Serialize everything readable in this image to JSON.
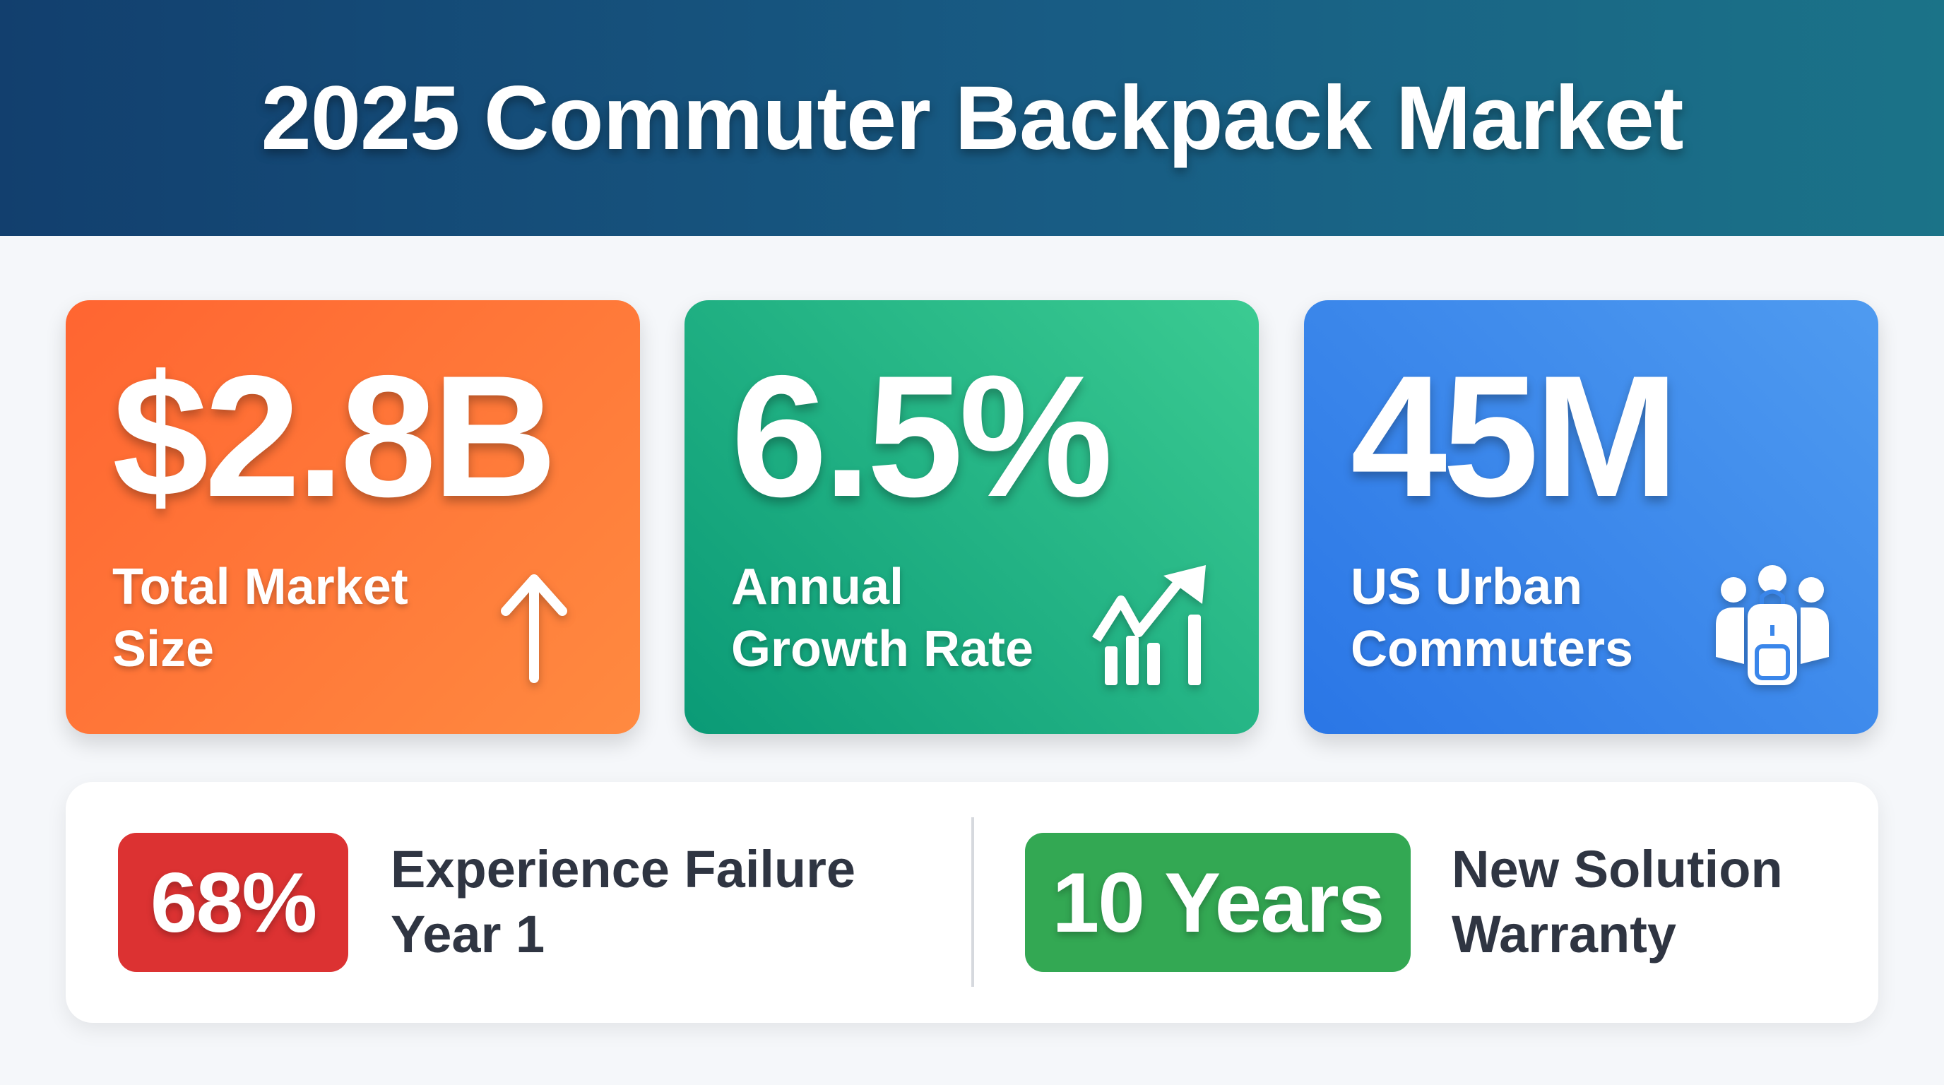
{
  "header": {
    "title": "2025 Commuter Backpack Market"
  },
  "cards": [
    {
      "value": "$2.8B",
      "label_line1": "Total Market",
      "label_line2": "Size",
      "icon": "arrow-up-icon",
      "color": "#ff7535"
    },
    {
      "value": "6.5%",
      "label_line1": "Annual",
      "label_line2": "Growth Rate",
      "icon": "growth-chart-icon",
      "color": "#1fb07f"
    },
    {
      "value": "45M",
      "label_line1": "US Urban",
      "label_line2": "Commuters",
      "icon": "people-backpack-icon",
      "color": "#3a86ea"
    }
  ],
  "stats": [
    {
      "badge": "68%",
      "text_line1": "Experience Failure",
      "text_line2": "Year 1",
      "color": "#dc3232"
    },
    {
      "badge": "10 Years",
      "text_line1": "New Solution",
      "text_line2": "Warranty",
      "color": "#33a853"
    }
  ]
}
